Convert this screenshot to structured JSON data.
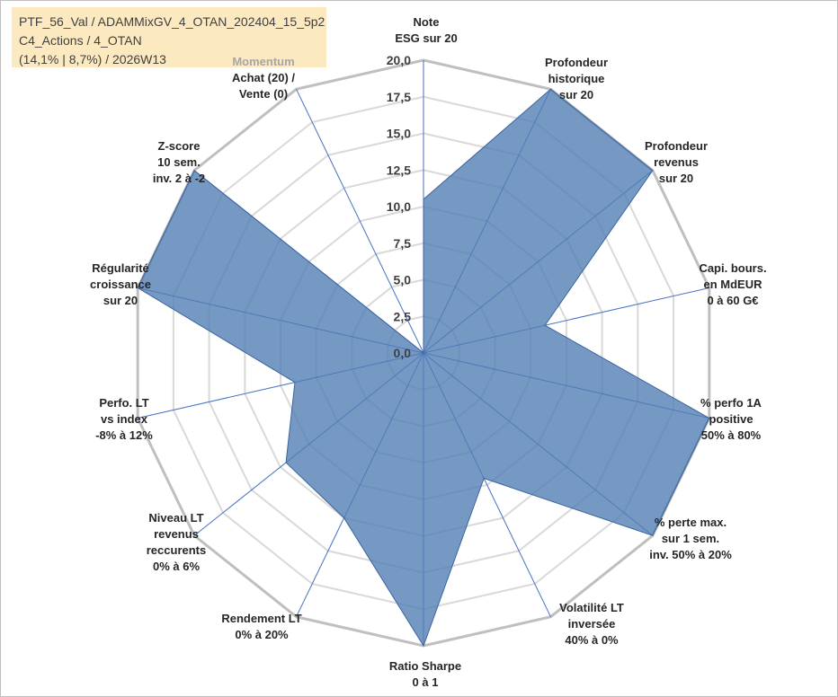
{
  "title_box": {
    "line1": "PTF_56_Val / ADAMMixGV_4_OTAN_202404_15_5p2",
    "line2": "C4_Actions / 4_OTAN",
    "line3": "(14,1% | 8,7%) / 2026W13"
  },
  "colors": {
    "title_background": "#fde9c0",
    "series_fill": "#4f7cb3",
    "series_stroke": "#3a64a0",
    "grid": "#d9d9d9",
    "outer_grid": "#bfbfbf",
    "spoke": "#4472c4"
  },
  "chart_data": {
    "type": "radar",
    "r_min": 0,
    "r_max": 20,
    "r_step": 2.5,
    "grid": true,
    "ticks": [
      "0,0",
      "2,5",
      "5,0",
      "7,5",
      "10,0",
      "12,5",
      "15,0",
      "17,5",
      "20,0"
    ],
    "axes": [
      {
        "lines": [
          "Note",
          "ESG sur 20"
        ]
      },
      {
        "lines": [
          "Profondeur",
          "historique",
          "sur 20"
        ]
      },
      {
        "lines": [
          "Profondeur",
          "revenus",
          "sur 20"
        ]
      },
      {
        "lines": [
          "Capi. bours.",
          "en MdEUR",
          "0 à 60 G€"
        ]
      },
      {
        "lines": [
          "% perfo 1A",
          "positive",
          "50% à 80%"
        ]
      },
      {
        "lines": [
          "% perte max.",
          "sur 1 sem.",
          "inv. 50% à 20%"
        ]
      },
      {
        "lines": [
          "Volatilité LT",
          "inversée",
          "40% à 0%"
        ]
      },
      {
        "lines": [
          "Ratio Sharpe",
          "0 à 1"
        ]
      },
      {
        "lines": [
          "Rendement LT",
          "0% à 20%"
        ]
      },
      {
        "lines": [
          "Niveau LT",
          "revenus",
          "reccurents",
          "0% à 6%"
        ]
      },
      {
        "lines": [
          "Perfo. LT",
          "vs index",
          "-8% à 12%"
        ]
      },
      {
        "lines": [
          "Régularité",
          "croissance",
          "sur 20"
        ]
      },
      {
        "lines": [
          "Z-score",
          "10 sem.",
          "inv. 2 à -2"
        ]
      },
      {
        "lines": [
          "Momentum",
          "Achat (20) /",
          "Vente (0)"
        ],
        "muted_first_line": true
      }
    ],
    "series": [
      {
        "values": [
          10.5,
          20,
          20,
          8.5,
          20,
          20,
          9.5,
          20,
          12.5,
          12,
          9,
          20,
          20,
          0
        ]
      }
    ]
  }
}
